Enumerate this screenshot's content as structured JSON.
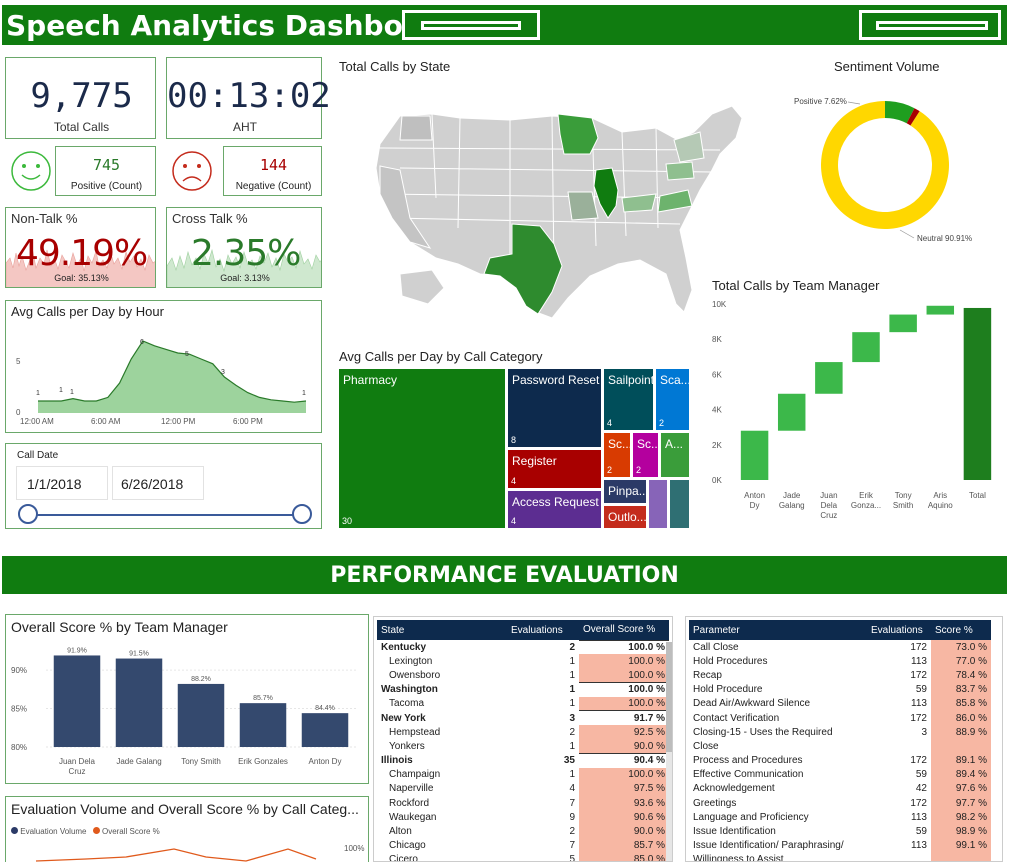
{
  "header": {
    "title": "Speech Analytics Dashboard"
  },
  "kpis": {
    "total_calls": {
      "value": "9,775",
      "label": "Total Calls"
    },
    "aht": {
      "value": "00:13:02",
      "label": "AHT"
    },
    "positive": {
      "value": "745",
      "label": "Positive (Count)"
    },
    "negative": {
      "value": "144",
      "label": "Negative (Count)"
    },
    "non_talk": {
      "title": "Non-Talk %",
      "value": "49.19%",
      "goal": "Goal: 35.13%"
    },
    "cross_talk": {
      "title": "Cross Talk %",
      "value": "2.35%",
      "goal": "Goal: 3.13%"
    }
  },
  "colors": {
    "brand": "#107c10",
    "navy": "#1b2a4a",
    "positive": "#3cb93c",
    "negative": "#c42b1c"
  },
  "hourly": {
    "title": "Avg Calls per Day by Hour",
    "ytick_labels": [
      "5",
      "0"
    ],
    "xtick_labels": [
      "12:00 AM",
      "6:00 AM",
      "12:00 PM",
      "6:00 PM"
    ],
    "point_labels": [
      "1",
      "1",
      "1",
      "6",
      "5",
      "3",
      "1"
    ]
  },
  "date_filter": {
    "title": "Call Date",
    "start": "1/1/2018",
    "end": "6/26/2018"
  },
  "map": {
    "title": "Total Calls by State"
  },
  "sentiment": {
    "title": "Sentiment Volume",
    "positive_label": "Positive 7.62%",
    "neutral_label": "Neutral 90.91%"
  },
  "treemap": {
    "title": "Avg Calls per Day by Call Category",
    "cells": [
      {
        "label": "Pharmacy",
        "num": "30",
        "color": "#107c10"
      },
      {
        "label": "Password Reset",
        "num": "8",
        "color": "#0d2a4d"
      },
      {
        "label": "Sailpoint",
        "num": "4",
        "color": "#004e5a"
      },
      {
        "label": "Sca...",
        "num": "2",
        "color": "#0078d4"
      },
      {
        "label": "Register",
        "num": "4",
        "color": "#a80000"
      },
      {
        "label": "Sc...",
        "num": "2",
        "color": "#d83b01"
      },
      {
        "label": "Sc...",
        "num": "2",
        "color": "#b4009e"
      },
      {
        "label": "A...",
        "num": "",
        "color": "#3a9d3a"
      },
      {
        "label": "Access Request",
        "num": "4",
        "color": "#5c2d91"
      },
      {
        "label": "Pinpa...",
        "num": "",
        "color": "#2b3a67"
      },
      {
        "label": "Outlo...",
        "num": "",
        "color": "#c42b1c"
      },
      {
        "label": "",
        "num": "",
        "color": "#8764b8"
      },
      {
        "label": "",
        "num": "",
        "color": "#2f6f73"
      }
    ]
  },
  "team_waterfall": {
    "title": "Total Calls by Team Manager"
  },
  "performance": {
    "title": "PERFORMANCE EVALUATION"
  },
  "chart_data": [
    {
      "type": "area",
      "title": "Avg Calls per Day by Hour",
      "x": [
        0,
        1,
        2,
        3,
        4,
        5,
        6,
        7,
        8,
        9,
        10,
        11,
        12,
        13,
        14,
        15,
        16,
        17,
        18,
        19,
        20,
        21,
        22,
        23
      ],
      "values": [
        1,
        1,
        1,
        1.2,
        1,
        1,
        1.3,
        2.5,
        4.5,
        6,
        5.6,
        5.3,
        5,
        4.9,
        4.5,
        4.1,
        3,
        2.3,
        1.7,
        1.3,
        1.1,
        1,
        0.9,
        1
      ],
      "ylim": [
        0,
        7
      ]
    },
    {
      "type": "pie",
      "title": "Sentiment Volume",
      "categories": [
        "Neutral",
        "Positive",
        "Negative"
      ],
      "values": [
        90.91,
        7.62,
        1.47
      ]
    },
    {
      "type": "bar",
      "title": "Total Calls by Team Manager",
      "categories": [
        "Anton Dy",
        "Jade Galang",
        "Juan Dela Cruz",
        "Erik Gonza...",
        "Tony Smith",
        "Aris Aquino",
        "Total"
      ],
      "values": [
        2800,
        2100,
        1800,
        1700,
        1000,
        500,
        9775
      ],
      "ytick_labels": [
        "10K",
        "8K",
        "6K",
        "4K",
        "2K",
        "0K"
      ],
      "ylim": [
        0,
        10000
      ]
    },
    {
      "type": "bar",
      "title": "Overall Score % by Team Manager",
      "categories": [
        "Juan Dela Cruz",
        "Jade Galang",
        "Tony Smith",
        "Erik Gonzales",
        "Anton Dy"
      ],
      "values": [
        91.9,
        91.5,
        88.2,
        85.7,
        84.4
      ],
      "value_labels": [
        "91.9%",
        "91.5%",
        "88.2%",
        "85.7%",
        "84.4%"
      ],
      "ytick_labels": [
        "90%",
        "85%",
        "80%"
      ],
      "ylim": [
        80,
        93
      ]
    },
    {
      "type": "line",
      "title": "Evaluation Volume and Overall Score % by Call Categ...",
      "series": [
        {
          "name": "Evaluation Volume",
          "values": []
        },
        {
          "name": "Overall Score %",
          "values": []
        }
      ],
      "ytick_labels": [
        "100%"
      ]
    }
  ],
  "state_table": {
    "headers": [
      "State",
      "Evaluations",
      "Overall Score %"
    ],
    "rows": [
      {
        "name": "Kentucky",
        "eval": "2",
        "score": "100.0 %",
        "group": true
      },
      {
        "name": "Lexington",
        "eval": "1",
        "score": "100.0 %",
        "group": false
      },
      {
        "name": "Owensboro",
        "eval": "1",
        "score": "100.0 %",
        "group": false
      },
      {
        "name": "Washington",
        "eval": "1",
        "score": "100.0 %",
        "group": true
      },
      {
        "name": "Tacoma",
        "eval": "1",
        "score": "100.0 %",
        "group": false
      },
      {
        "name": "New York",
        "eval": "3",
        "score": "91.7 %",
        "group": true
      },
      {
        "name": "Hempstead",
        "eval": "2",
        "score": "92.5 %",
        "group": false
      },
      {
        "name": "Yonkers",
        "eval": "1",
        "score": "90.0 %",
        "group": false
      },
      {
        "name": "Illinois",
        "eval": "35",
        "score": "90.4 %",
        "group": true
      },
      {
        "name": "Champaign",
        "eval": "1",
        "score": "100.0 %",
        "group": false
      },
      {
        "name": "Naperville",
        "eval": "4",
        "score": "97.5 %",
        "group": false
      },
      {
        "name": "Rockford",
        "eval": "7",
        "score": "93.6 %",
        "group": false
      },
      {
        "name": "Waukegan",
        "eval": "9",
        "score": "90.6 %",
        "group": false
      },
      {
        "name": "Alton",
        "eval": "2",
        "score": "90.0 %",
        "group": false
      },
      {
        "name": "Chicago",
        "eval": "7",
        "score": "85.7 %",
        "group": false
      },
      {
        "name": "Cicero",
        "eval": "5",
        "score": "85.0 %",
        "group": false
      }
    ]
  },
  "param_table": {
    "headers": [
      "Parameter",
      "Evaluations",
      "Score %"
    ],
    "rows": [
      {
        "name": "Call Close",
        "eval": "172",
        "score": "73.0 %"
      },
      {
        "name": "Hold Procedures",
        "eval": "113",
        "score": "77.0 %"
      },
      {
        "name": "Recap",
        "eval": "172",
        "score": "78.4 %"
      },
      {
        "name": "Hold Procedure",
        "eval": "59",
        "score": "83.7 %"
      },
      {
        "name": "Dead Air/Awkward Silence",
        "eval": "113",
        "score": "85.8 %"
      },
      {
        "name": "Contact Verification",
        "eval": "172",
        "score": "86.0 %"
      },
      {
        "name": "Closing-15 - Uses the Required",
        "eval": "3",
        "score": "88.9 %"
      },
      {
        "name": "Close",
        "eval": "",
        "score": ""
      },
      {
        "name": "Process and Procedures",
        "eval": "172",
        "score": "89.1 %"
      },
      {
        "name": "Effective Communication",
        "eval": "59",
        "score": "89.4 %"
      },
      {
        "name": "Acknowledgement",
        "eval": "42",
        "score": "97.6 %"
      },
      {
        "name": "Greetings",
        "eval": "172",
        "score": "97.7 %"
      },
      {
        "name": "Language and Proficiency",
        "eval": "113",
        "score": "98.2 %"
      },
      {
        "name": "Issue Identification",
        "eval": "59",
        "score": "98.9 %"
      },
      {
        "name": "Issue Identification/ Paraphrasing/",
        "eval": "113",
        "score": "99.1 %"
      },
      {
        "name": "Willingness to Assist",
        "eval": "",
        "score": ""
      }
    ]
  },
  "score_chart": {
    "title": "Overall Score % by Team Manager"
  },
  "volume_chart": {
    "title": "Evaluation Volume and Overall Score % by Call Categ...",
    "legend": [
      "Evaluation Volume",
      "Overall Score %"
    ]
  }
}
